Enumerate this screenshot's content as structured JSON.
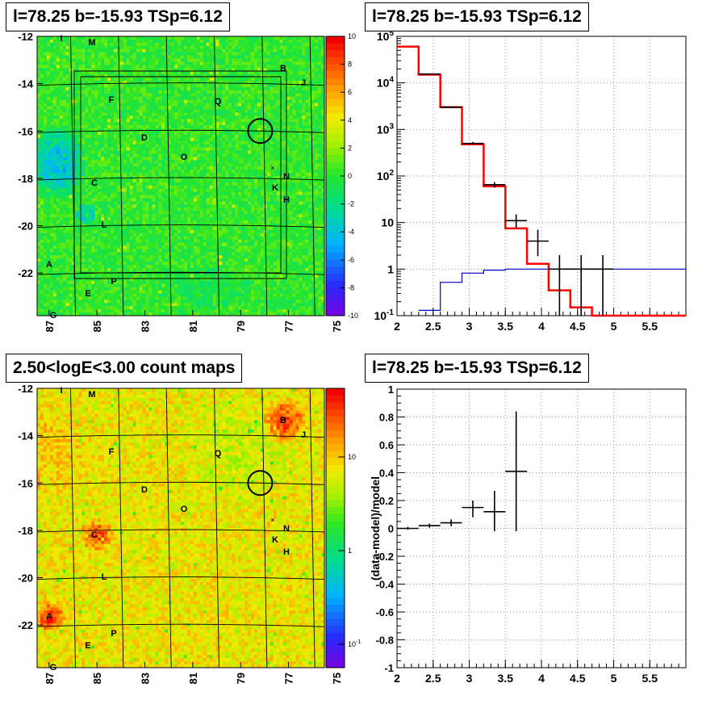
{
  "panels": {
    "tl_title": "l=78.25 b=-15.93 TSp=6.12",
    "tr_title": "l=78.25 b=-15.93 TSp=6.12",
    "bl_title": "2.50<logE<3.00 count maps",
    "br_title": "l=78.25 b=-15.93 TSp=6.12"
  },
  "chart_data": [
    {
      "type": "heatmap",
      "panel": "top-left",
      "title": "l=78.25 b=-15.93 TSp=6.12",
      "x_ticks": [
        "87",
        "85",
        "83",
        "81",
        "79",
        "77",
        "75"
      ],
      "y_ticks": [
        "-12",
        "-14",
        "-16",
        "-18",
        "-20",
        "-22"
      ],
      "colorbar_ticks": [
        "10",
        "8",
        "6",
        "4",
        "2",
        "0",
        "-2",
        "-4",
        "-6",
        "-8",
        "-10"
      ],
      "zlim": [
        -10,
        10
      ],
      "colorscale": "rainbow",
      "source_labels": [
        "I",
        "M",
        "B",
        "J",
        "F",
        "Q",
        "D",
        "O",
        "N",
        "K",
        "C",
        "H",
        "L",
        "A",
        "P",
        "E",
        "G"
      ],
      "circle": {
        "l": 78.25,
        "b": -15.93
      }
    },
    {
      "type": "line",
      "panel": "top-right",
      "title": "l=78.25 b=-15.93 TSp=6.12",
      "yscale": "log",
      "xlim": [
        2,
        6
      ],
      "ylim": [
        0.1,
        100000
      ],
      "x_ticks": [
        "2",
        "2.5",
        "3",
        "3.5",
        "4",
        "4.5",
        "5",
        "5.5"
      ],
      "y_ticks": [
        "10^-1",
        "1",
        "10",
        "10^2",
        "10^3",
        "10^4",
        "10^5"
      ],
      "grid": true,
      "series": [
        {
          "style": "step",
          "color": "#ff0000",
          "edges": [
            2.0,
            2.3,
            2.6,
            2.9,
            3.2,
            3.5,
            3.8,
            4.1,
            4.4,
            4.7,
            6.0
          ],
          "values": [
            60000,
            15000,
            3000,
            480,
            60,
            7.5,
            1.3,
            0.35,
            0.15,
            0.1
          ]
        },
        {
          "style": "step",
          "color": "#0000cc",
          "edges": [
            2.3,
            2.6,
            2.9,
            3.2,
            3.5,
            6.0
          ],
          "values": [
            0.13,
            0.52,
            0.82,
            0.95,
            1.0
          ]
        },
        {
          "style": "errorbar",
          "color": "#000000",
          "points": [
            {
              "x": 2.45,
              "y": 15500,
              "xerr": 0.15,
              "ylo": 15000,
              "yhi": 16000
            },
            {
              "x": 2.75,
              "y": 3000,
              "xerr": 0.15,
              "ylo": 2900,
              "yhi": 3100
            },
            {
              "x": 3.05,
              "y": 500,
              "xerr": 0.15,
              "ylo": 470,
              "yhi": 540
            },
            {
              "x": 3.35,
              "y": 65,
              "xerr": 0.15,
              "ylo": 56,
              "yhi": 74
            },
            {
              "x": 3.65,
              "y": 11,
              "xerr": 0.15,
              "ylo": 7.5,
              "yhi": 15
            },
            {
              "x": 3.95,
              "y": 4,
              "xerr": 0.15,
              "ylo": 1.9,
              "yhi": 7
            },
            {
              "x": 4.25,
              "y": 1,
              "xerr": 0.15,
              "ylo": 0.1,
              "yhi": 2
            },
            {
              "x": 4.55,
              "y": 1,
              "xerr": 0.15,
              "ylo": 0.1,
              "yhi": 2
            },
            {
              "x": 4.85,
              "y": 1,
              "xerr": 0.15,
              "ylo": 0.1,
              "yhi": 2
            }
          ]
        }
      ]
    },
    {
      "type": "heatmap",
      "panel": "bottom-left",
      "title": "2.50<logE<3.00 count maps",
      "x_ticks": [
        "87",
        "85",
        "83",
        "81",
        "79",
        "77",
        "75"
      ],
      "y_ticks": [
        "-12",
        "-14",
        "-16",
        "-18",
        "-20",
        "-22"
      ],
      "colorbar_ticks": [
        "10",
        "1",
        "10^-1"
      ],
      "zscale": "log",
      "colorscale": "rainbow",
      "source_labels": [
        "I",
        "M",
        "B",
        "J",
        "F",
        "Q",
        "D",
        "O",
        "N",
        "K",
        "C",
        "H",
        "L",
        "A",
        "P",
        "E",
        "G"
      ],
      "circle": {
        "l": 78.25,
        "b": -15.93
      }
    },
    {
      "type": "scatter",
      "panel": "bottom-right",
      "title": "l=78.25 b=-15.93 TSp=6.12",
      "ylabel": "(data-model)/model",
      "xlim": [
        2,
        6
      ],
      "ylim": [
        -1,
        1
      ],
      "x_ticks": [
        "2",
        "2.5",
        "3",
        "3.5",
        "4",
        "4.5",
        "5",
        "5.5"
      ],
      "y_ticks": [
        "1",
        "0.8",
        "0.6",
        "0.4",
        "0.2",
        "0",
        "-0.2",
        "-0.4",
        "-0.6",
        "-0.8",
        "-1"
      ],
      "grid": true,
      "points": [
        {
          "x": 2.15,
          "y": 0.0,
          "xerr": 0.15,
          "ylo": -0.01,
          "yhi": 0.01
        },
        {
          "x": 2.45,
          "y": 0.02,
          "xerr": 0.15,
          "ylo": 0.005,
          "yhi": 0.035
        },
        {
          "x": 2.75,
          "y": 0.04,
          "xerr": 0.15,
          "ylo": 0.015,
          "yhi": 0.065
        },
        {
          "x": 3.05,
          "y": 0.15,
          "xerr": 0.15,
          "ylo": 0.08,
          "yhi": 0.2
        },
        {
          "x": 3.35,
          "y": 0.12,
          "xerr": 0.15,
          "ylo": -0.02,
          "yhi": 0.27
        },
        {
          "x": 3.65,
          "y": 0.41,
          "xerr": 0.15,
          "ylo": -0.02,
          "yhi": 0.84
        }
      ]
    }
  ]
}
